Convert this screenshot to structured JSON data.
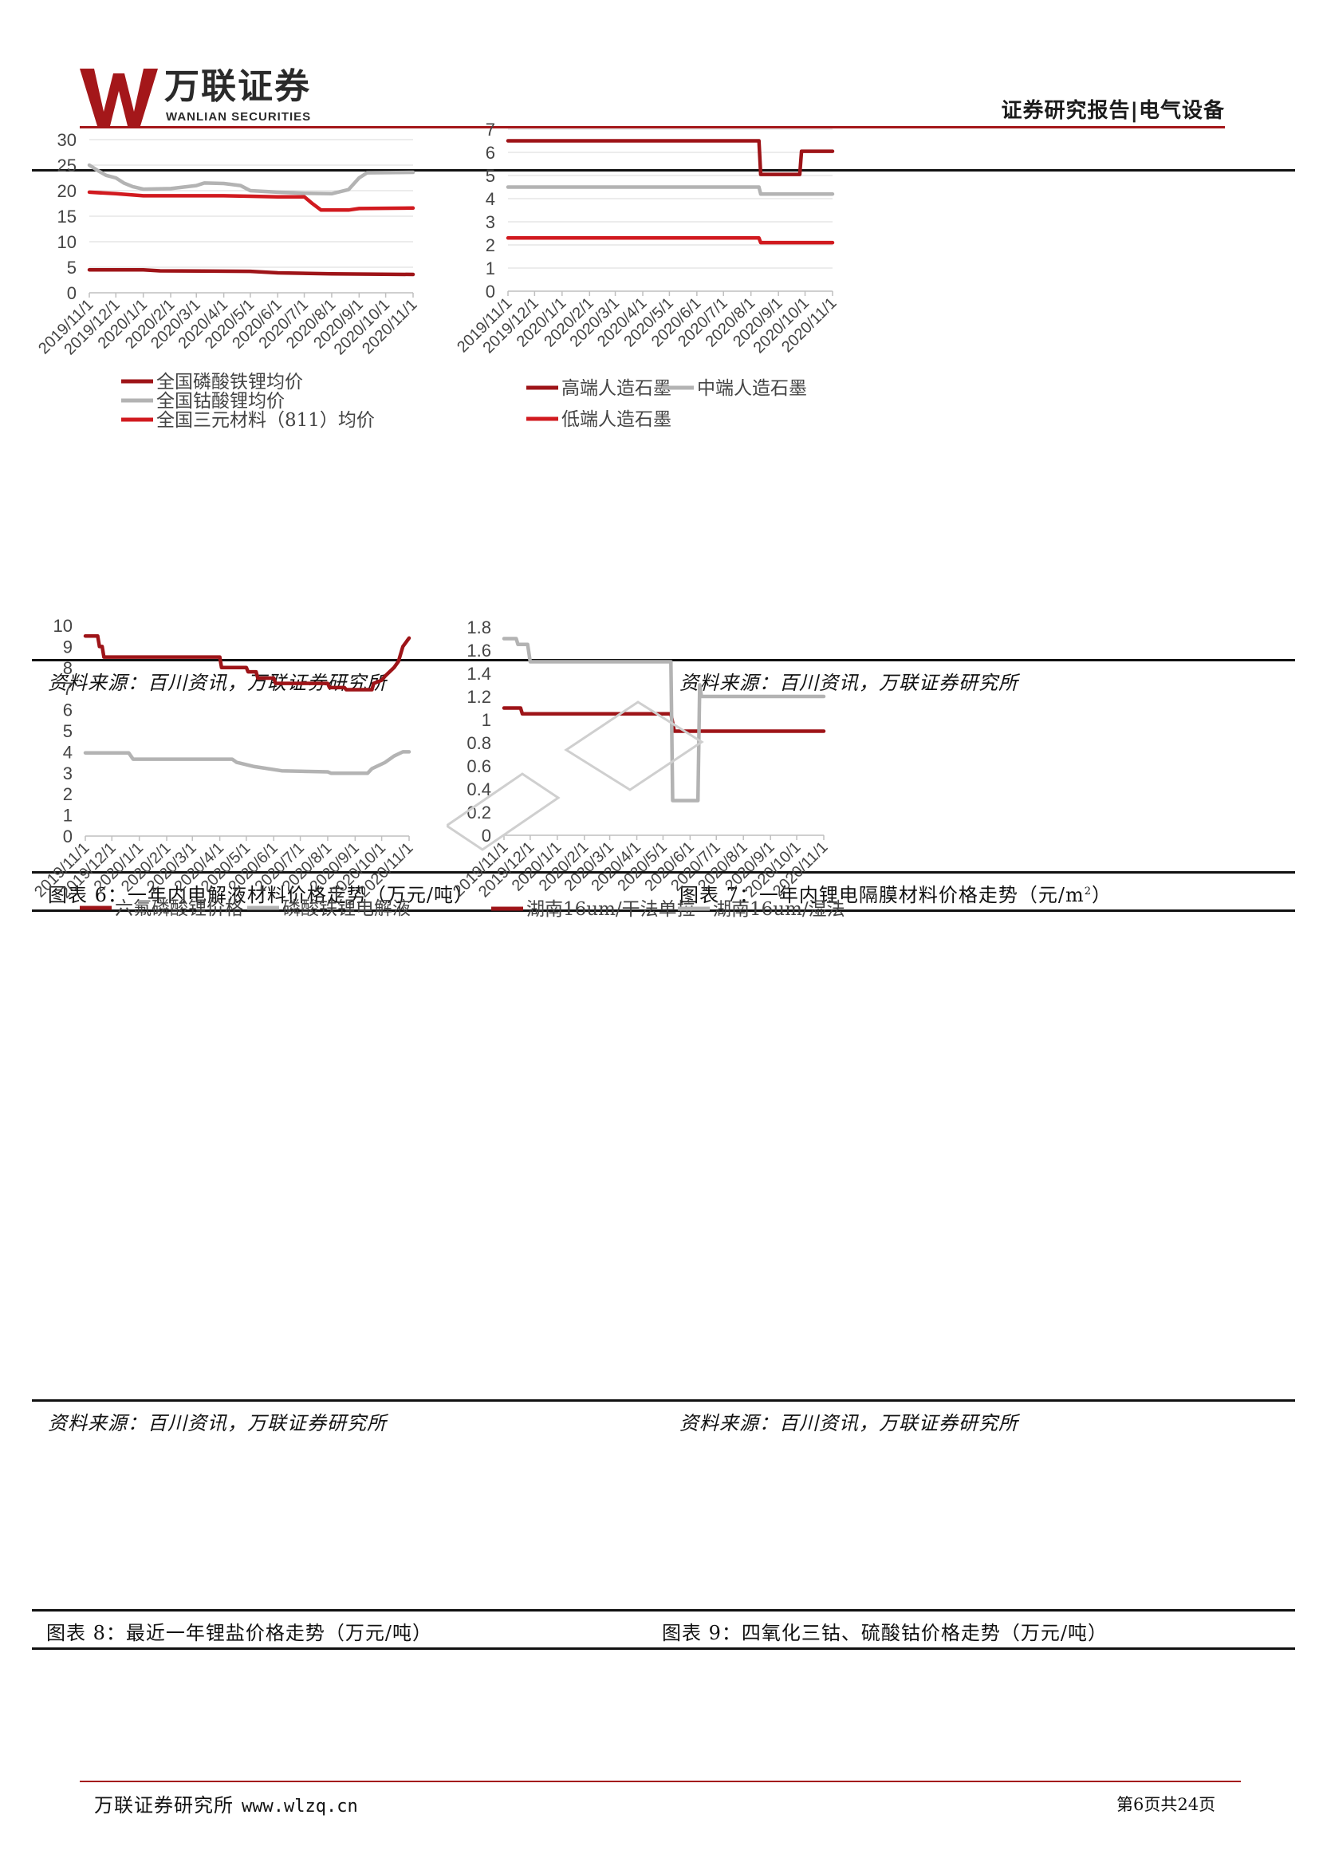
{
  "header": {
    "logo_cn": "万联证券",
    "logo_en": "WANLIAN SECURITIES",
    "report_type": "证券研究报告|电气设备"
  },
  "colors": {
    "dark_red": "#9e1418",
    "red": "#d11a1f",
    "gray": "#b3b3b3",
    "brand_red": "#a4171a"
  },
  "x_dates": [
    "2019/11/1",
    "2019/12/1",
    "2020/1/1",
    "2020/2/1",
    "2020/3/1",
    "2020/4/1",
    "2020/5/1",
    "2020/6/1",
    "2020/7/1",
    "2020/8/1",
    "2020/9/1",
    "2020/10/1",
    "2020/11/1"
  ],
  "chart_data": [
    {
      "id": "top-left",
      "type": "line",
      "title": "",
      "ylim": [
        0,
        30
      ],
      "yticks": [
        0,
        5,
        10,
        15,
        20,
        25,
        30
      ],
      "grid": true,
      "legend_position": "bottom",
      "series": [
        {
          "name": "全国磷酸铁锂均价",
          "color": "dark_red",
          "points": [
            [
              "2019/11/1",
              4.5
            ],
            [
              "2020/1/1",
              4.5
            ],
            [
              "2020/1/20",
              4.3
            ],
            [
              "2020/5/1",
              4.2
            ],
            [
              "2020/6/1",
              3.9
            ],
            [
              "2020/8/1",
              3.7
            ],
            [
              "2020/11/1",
              3.6
            ]
          ]
        },
        {
          "name": "全国钴酸锂均价",
          "color": "gray",
          "points": [
            [
              "2019/11/1",
              25
            ],
            [
              "2019/11/10",
              24
            ],
            [
              "2019/11/20",
              23
            ],
            [
              "2019/12/1",
              22.5
            ],
            [
              "2019/12/10",
              21.5
            ],
            [
              "2019/12/20",
              20.8
            ],
            [
              "2020/1/1",
              20.3
            ],
            [
              "2020/2/1",
              20.4
            ],
            [
              "2020/3/1",
              21
            ],
            [
              "2020/3/10",
              21.5
            ],
            [
              "2020/4/1",
              21.4
            ],
            [
              "2020/4/20",
              21
            ],
            [
              "2020/5/1",
              20
            ],
            [
              "2020/6/1",
              19.7
            ],
            [
              "2020/7/1",
              19.5
            ],
            [
              "2020/8/1",
              19.4
            ],
            [
              "2020/8/20",
              20.2
            ],
            [
              "2020/9/1",
              22.5
            ],
            [
              "2020/9/10",
              23.5
            ],
            [
              "2020/11/1",
              23.6
            ]
          ]
        },
        {
          "name": "全国三元材料（811）均价",
          "color": "red",
          "points": [
            [
              "2019/11/1",
              19.7
            ],
            [
              "2019/12/1",
              19.4
            ],
            [
              "2020/1/1",
              19
            ],
            [
              "2020/4/1",
              19
            ],
            [
              "2020/5/1",
              18.9
            ],
            [
              "2020/6/1",
              18.8
            ],
            [
              "2020/7/1",
              18.8
            ],
            [
              "2020/7/10",
              17.5
            ],
            [
              "2020/7/20",
              16.2
            ],
            [
              "2020/8/20",
              16.2
            ],
            [
              "2020/9/1",
              16.5
            ],
            [
              "2020/11/1",
              16.6
            ]
          ]
        }
      ]
    },
    {
      "id": "top-right",
      "type": "line",
      "title": "",
      "ylim": [
        0,
        7
      ],
      "yticks": [
        0,
        1,
        2,
        3,
        4,
        5,
        6,
        7
      ],
      "grid": true,
      "legend_position": "bottom",
      "series": [
        {
          "name": "高端人造石墨",
          "color": "dark_red",
          "points": [
            [
              "2019/11/1",
              6.5
            ],
            [
              "2020/8/10",
              6.5
            ],
            [
              "2020/8/12",
              5.05
            ],
            [
              "2020/9/25",
              5.05
            ],
            [
              "2020/9/27",
              6.05
            ],
            [
              "2020/11/1",
              6.05
            ]
          ]
        },
        {
          "name": "中端人造石墨",
          "color": "gray",
          "points": [
            [
              "2019/11/1",
              4.5
            ],
            [
              "2020/8/10",
              4.5
            ],
            [
              "2020/8/12",
              4.2
            ],
            [
              "2020/11/1",
              4.2
            ]
          ]
        },
        {
          "name": "低端人造石墨",
          "color": "red",
          "points": [
            [
              "2019/11/1",
              2.3
            ],
            [
              "2020/8/10",
              2.3
            ],
            [
              "2020/8/12",
              2.1
            ],
            [
              "2020/11/1",
              2.1
            ]
          ]
        }
      ]
    },
    {
      "id": "bottom-left",
      "type": "line",
      "title": "",
      "ylim": [
        0,
        10
      ],
      "yticks": [
        0,
        1,
        2,
        3,
        4,
        5,
        6,
        7,
        8,
        9,
        10
      ],
      "grid": false,
      "legend_position": "bottom",
      "series": [
        {
          "name": "六氟磷酸锂价格",
          "color": "dark_red",
          "points": [
            [
              "2019/11/1",
              9.5
            ],
            [
              "2019/11/15",
              9.5
            ],
            [
              "2019/11/17",
              9
            ],
            [
              "2019/11/20",
              9
            ],
            [
              "2019/11/22",
              8.5
            ],
            [
              "2020/4/1",
              8.5
            ],
            [
              "2020/4/3",
              8
            ],
            [
              "2020/5/1",
              8
            ],
            [
              "2020/5/3",
              7.8
            ],
            [
              "2020/5/12",
              7.8
            ],
            [
              "2020/5/14",
              7.5
            ],
            [
              "2020/6/1",
              7.5
            ],
            [
              "2020/6/3",
              7.25
            ],
            [
              "2020/8/1",
              7.25
            ],
            [
              "2020/8/3",
              7.05
            ],
            [
              "2020/8/20",
              7.05
            ],
            [
              "2020/8/22",
              6.95
            ],
            [
              "2020/9/20",
              6.95
            ],
            [
              "2020/9/22",
              7.25
            ],
            [
              "2020/10/1",
              7.4
            ],
            [
              "2020/10/5",
              7.6
            ],
            [
              "2020/10/15",
              8
            ],
            [
              "2020/10/20",
              8.3
            ],
            [
              "2020/10/25",
              9
            ],
            [
              "2020/11/1",
              9.4
            ]
          ]
        },
        {
          "name": "磷酸铁锂电解液",
          "color": "gray",
          "points": [
            [
              "2019/11/1",
              3.95
            ],
            [
              "2019/12/20",
              3.95
            ],
            [
              "2019/12/25",
              3.65
            ],
            [
              "2020/4/15",
              3.65
            ],
            [
              "2020/4/20",
              3.5
            ],
            [
              "2020/5/10",
              3.3
            ],
            [
              "2020/6/10",
              3.1
            ],
            [
              "2020/8/1",
              3.05
            ],
            [
              "2020/8/5",
              2.98
            ],
            [
              "2020/9/15",
              2.98
            ],
            [
              "2020/9/20",
              3.2
            ],
            [
              "2020/10/5",
              3.5
            ],
            [
              "2020/10/15",
              3.8
            ],
            [
              "2020/10/25",
              4
            ],
            [
              "2020/11/1",
              4
            ]
          ]
        }
      ]
    },
    {
      "id": "bottom-right",
      "type": "line",
      "title": "",
      "ylim": [
        0,
        1.8
      ],
      "yticks": [
        0,
        0.2,
        0.4,
        0.6,
        0.8,
        1,
        1.2,
        1.4,
        1.6,
        1.8
      ],
      "ytick_labels": [
        "0",
        "0.2",
        "0.4",
        "0.6",
        "0.8",
        "1",
        "1.2",
        "1.4",
        "1.6",
        "1.8"
      ],
      "grid": false,
      "legend_position": "bottom",
      "series": [
        {
          "name": "湖南16um/干法单拉",
          "color": "dark_red",
          "points": [
            [
              "2019/11/1",
              1.1
            ],
            [
              "2019/11/20",
              1.1
            ],
            [
              "2019/11/22",
              1.05
            ],
            [
              "2020/5/10",
              1.05
            ],
            [
              "2020/5/14",
              0.9
            ],
            [
              "2020/11/1",
              0.9
            ]
          ]
        },
        {
          "name": "湖南16um/湿法",
          "color": "gray",
          "points": [
            [
              "2019/11/1",
              1.7
            ],
            [
              "2019/11/15",
              1.7
            ],
            [
              "2019/11/17",
              1.65
            ],
            [
              "2019/11/28",
              1.65
            ],
            [
              "2019/12/1",
              1.5
            ],
            [
              "2020/5/10",
              1.5
            ],
            [
              "2020/5/12",
              0.3
            ],
            [
              "2020/6/10",
              0.3
            ],
            [
              "2020/6/12",
              1.3
            ],
            [
              "2020/6/14",
              1.2
            ],
            [
              "2020/11/1",
              1.2
            ]
          ]
        }
      ]
    }
  ],
  "sources": {
    "top_left": "资料来源：百川资讯，万联证券研究所",
    "top_right": "资料来源：百川资讯，万联证券研究所",
    "bottom_left": "资料来源：百川资讯，万联证券研究所",
    "bottom_right": "资料来源：百川资讯，万联证券研究所"
  },
  "captions": {
    "fig6": "图表 6：一年内电解液材料价格走势（万元/吨）",
    "fig7_main": "图表 7：一年内锂电隔膜材料价格走势（元/m",
    "fig7_sup": "2",
    "fig7_end": "）",
    "fig8": "图表 8：最近一年锂盐价格走势（万元/吨）",
    "fig9": "图表 9：四氧化三钴、硫酸钴价格走势（万元/吨）"
  },
  "footer": {
    "org": "万联证券研究所",
    "url": "www.wlzq.cn",
    "page": "第6页共24页"
  }
}
